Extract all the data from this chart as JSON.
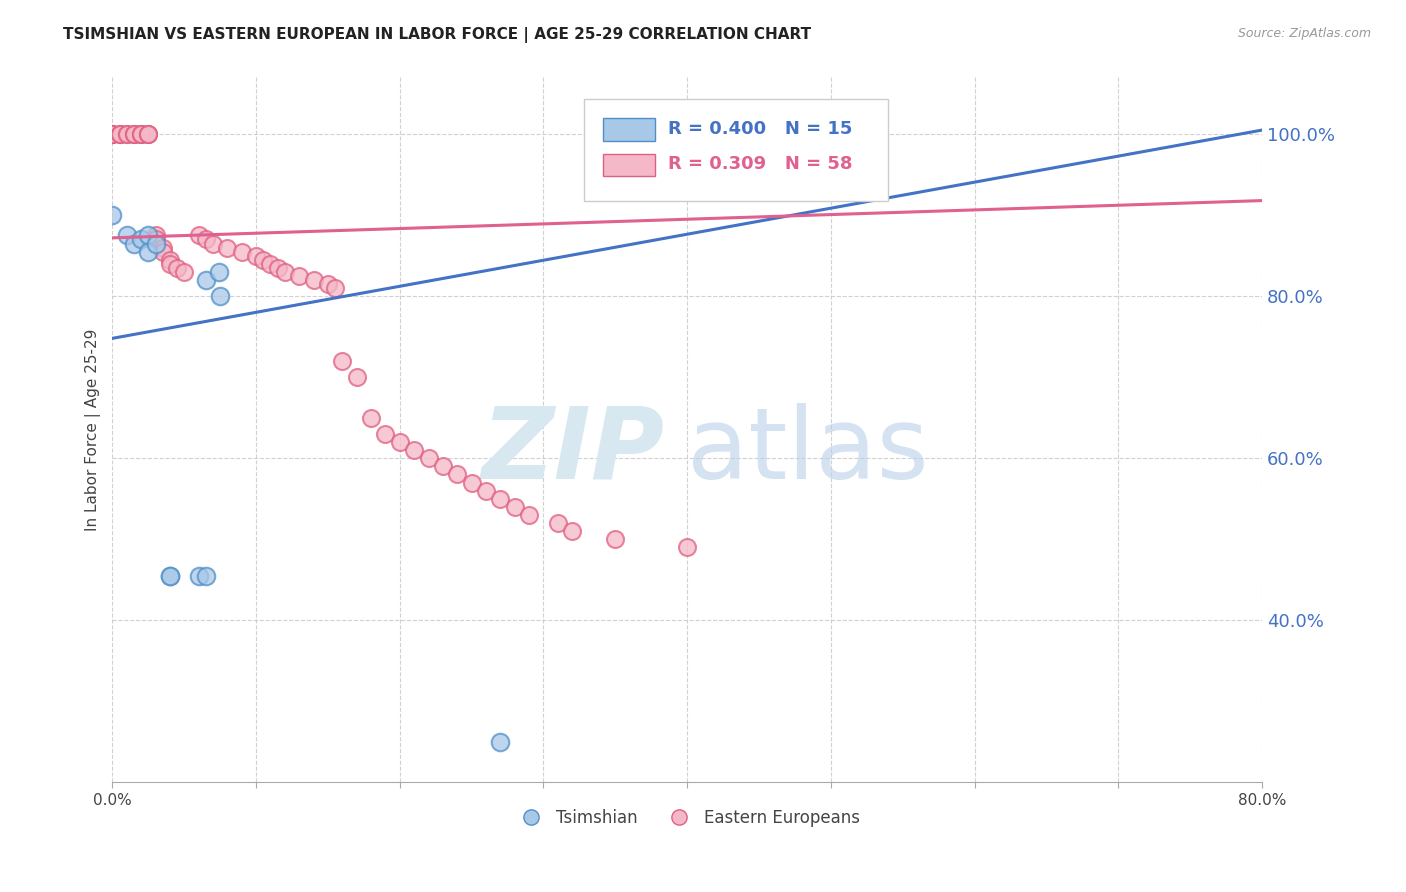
{
  "title": "TSIMSHIAN VS EASTERN EUROPEAN IN LABOR FORCE | AGE 25-29 CORRELATION CHART",
  "source": "Source: ZipAtlas.com",
  "ylabel": "In Labor Force | Age 25-29",
  "xlim": [
    0.0,
    0.8
  ],
  "ylim": [
    0.2,
    1.07
  ],
  "xticks": [
    0.0,
    0.1,
    0.2,
    0.3,
    0.4,
    0.5,
    0.6,
    0.7,
    0.8
  ],
  "yticks": [
    0.4,
    0.6,
    0.8,
    1.0
  ],
  "legend_r_blue": "R = 0.400",
  "legend_n_blue": "N = 15",
  "legend_r_pink": "R = 0.309",
  "legend_n_pink": "N = 58",
  "legend_label_blue": "Tsimshian",
  "legend_label_pink": "Eastern Europeans",
  "blue_color": "#a8c8e8",
  "pink_color": "#f4b8c8",
  "blue_edge_color": "#5090c8",
  "pink_edge_color": "#e06080",
  "blue_line_color": "#4472c4",
  "pink_line_color": "#e06090",
  "watermark_zip": "ZIP",
  "watermark_atlas": "atlas",
  "tsimshian_x": [
    0.0,
    0.01,
    0.015,
    0.02,
    0.025,
    0.025,
    0.03,
    0.04,
    0.04,
    0.06,
    0.065,
    0.065,
    0.074,
    0.075,
    0.27
  ],
  "tsimshian_y": [
    0.9,
    0.875,
    0.865,
    0.87,
    0.875,
    0.855,
    0.865,
    0.455,
    0.455,
    0.455,
    0.455,
    0.82,
    0.83,
    0.8,
    0.25
  ],
  "eastern_x": [
    0.0,
    0.0,
    0.0,
    0.0,
    0.005,
    0.005,
    0.005,
    0.01,
    0.01,
    0.015,
    0.015,
    0.015,
    0.02,
    0.02,
    0.02,
    0.025,
    0.025,
    0.025,
    0.03,
    0.03,
    0.035,
    0.035,
    0.04,
    0.04,
    0.045,
    0.05,
    0.06,
    0.065,
    0.07,
    0.08,
    0.09,
    0.1,
    0.105,
    0.11,
    0.115,
    0.12,
    0.13,
    0.14,
    0.15,
    0.155,
    0.16,
    0.17,
    0.18,
    0.19,
    0.2,
    0.21,
    0.22,
    0.23,
    0.24,
    0.25,
    0.26,
    0.27,
    0.28,
    0.29,
    0.31,
    0.32,
    0.35,
    0.4
  ],
  "eastern_y": [
    1.0,
    1.0,
    1.0,
    1.0,
    1.0,
    1.0,
    1.0,
    1.0,
    1.0,
    1.0,
    1.0,
    1.0,
    1.0,
    1.0,
    1.0,
    1.0,
    1.0,
    1.0,
    0.875,
    0.87,
    0.86,
    0.855,
    0.845,
    0.84,
    0.835,
    0.83,
    0.875,
    0.87,
    0.865,
    0.86,
    0.855,
    0.85,
    0.845,
    0.84,
    0.835,
    0.83,
    0.825,
    0.82,
    0.815,
    0.81,
    0.72,
    0.7,
    0.65,
    0.63,
    0.62,
    0.61,
    0.6,
    0.59,
    0.58,
    0.57,
    0.56,
    0.55,
    0.54,
    0.53,
    0.52,
    0.51,
    0.5,
    0.49
  ],
  "blue_trendline_x": [
    0.0,
    0.8
  ],
  "blue_trendline_y": [
    0.748,
    1.005
  ],
  "pink_trendline_x": [
    0.0,
    0.8
  ],
  "pink_trendline_y": [
    0.872,
    0.918
  ],
  "background_color": "#ffffff",
  "grid_color": "#cccccc",
  "title_color": "#222222",
  "tick_color": "#4472c4",
  "ylabel_color": "#444444"
}
